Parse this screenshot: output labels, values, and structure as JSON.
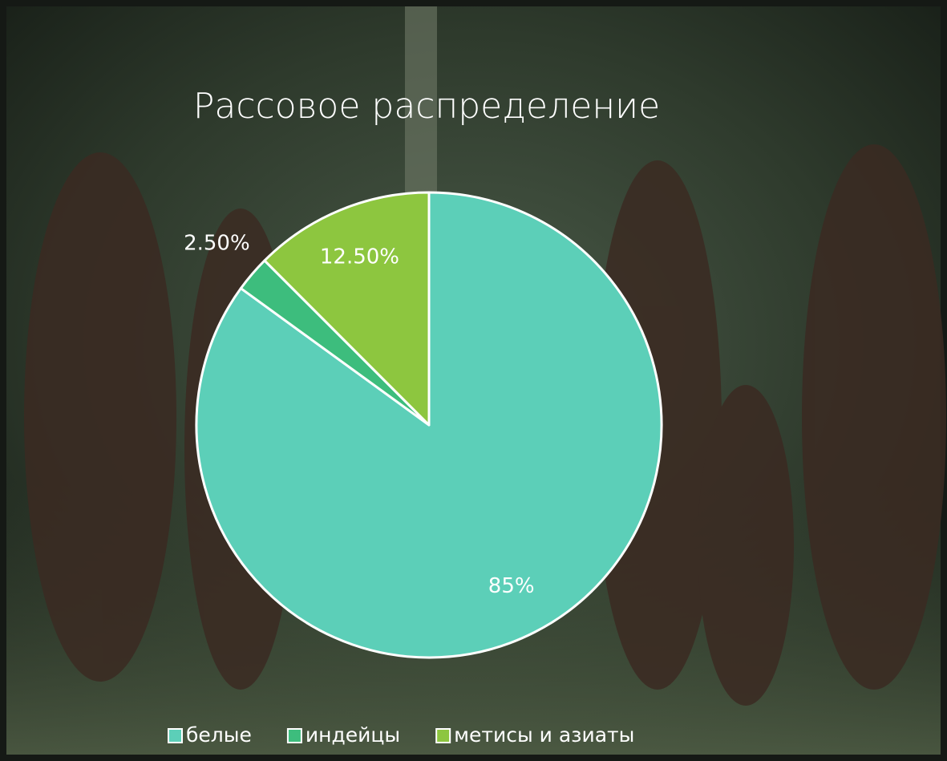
{
  "chart_data": {
    "type": "pie",
    "title": "Рассовое распределение",
    "categories": [
      "белые",
      "индейцы",
      "метисы и азиаты"
    ],
    "values": [
      85,
      2.5,
      12.5
    ],
    "value_labels": [
      "85%",
      "2.50%",
      "12.50%"
    ],
    "colors": [
      "#5ccfb8",
      "#3dbd7d",
      "#8dc63f"
    ],
    "legend": "bottom"
  }
}
